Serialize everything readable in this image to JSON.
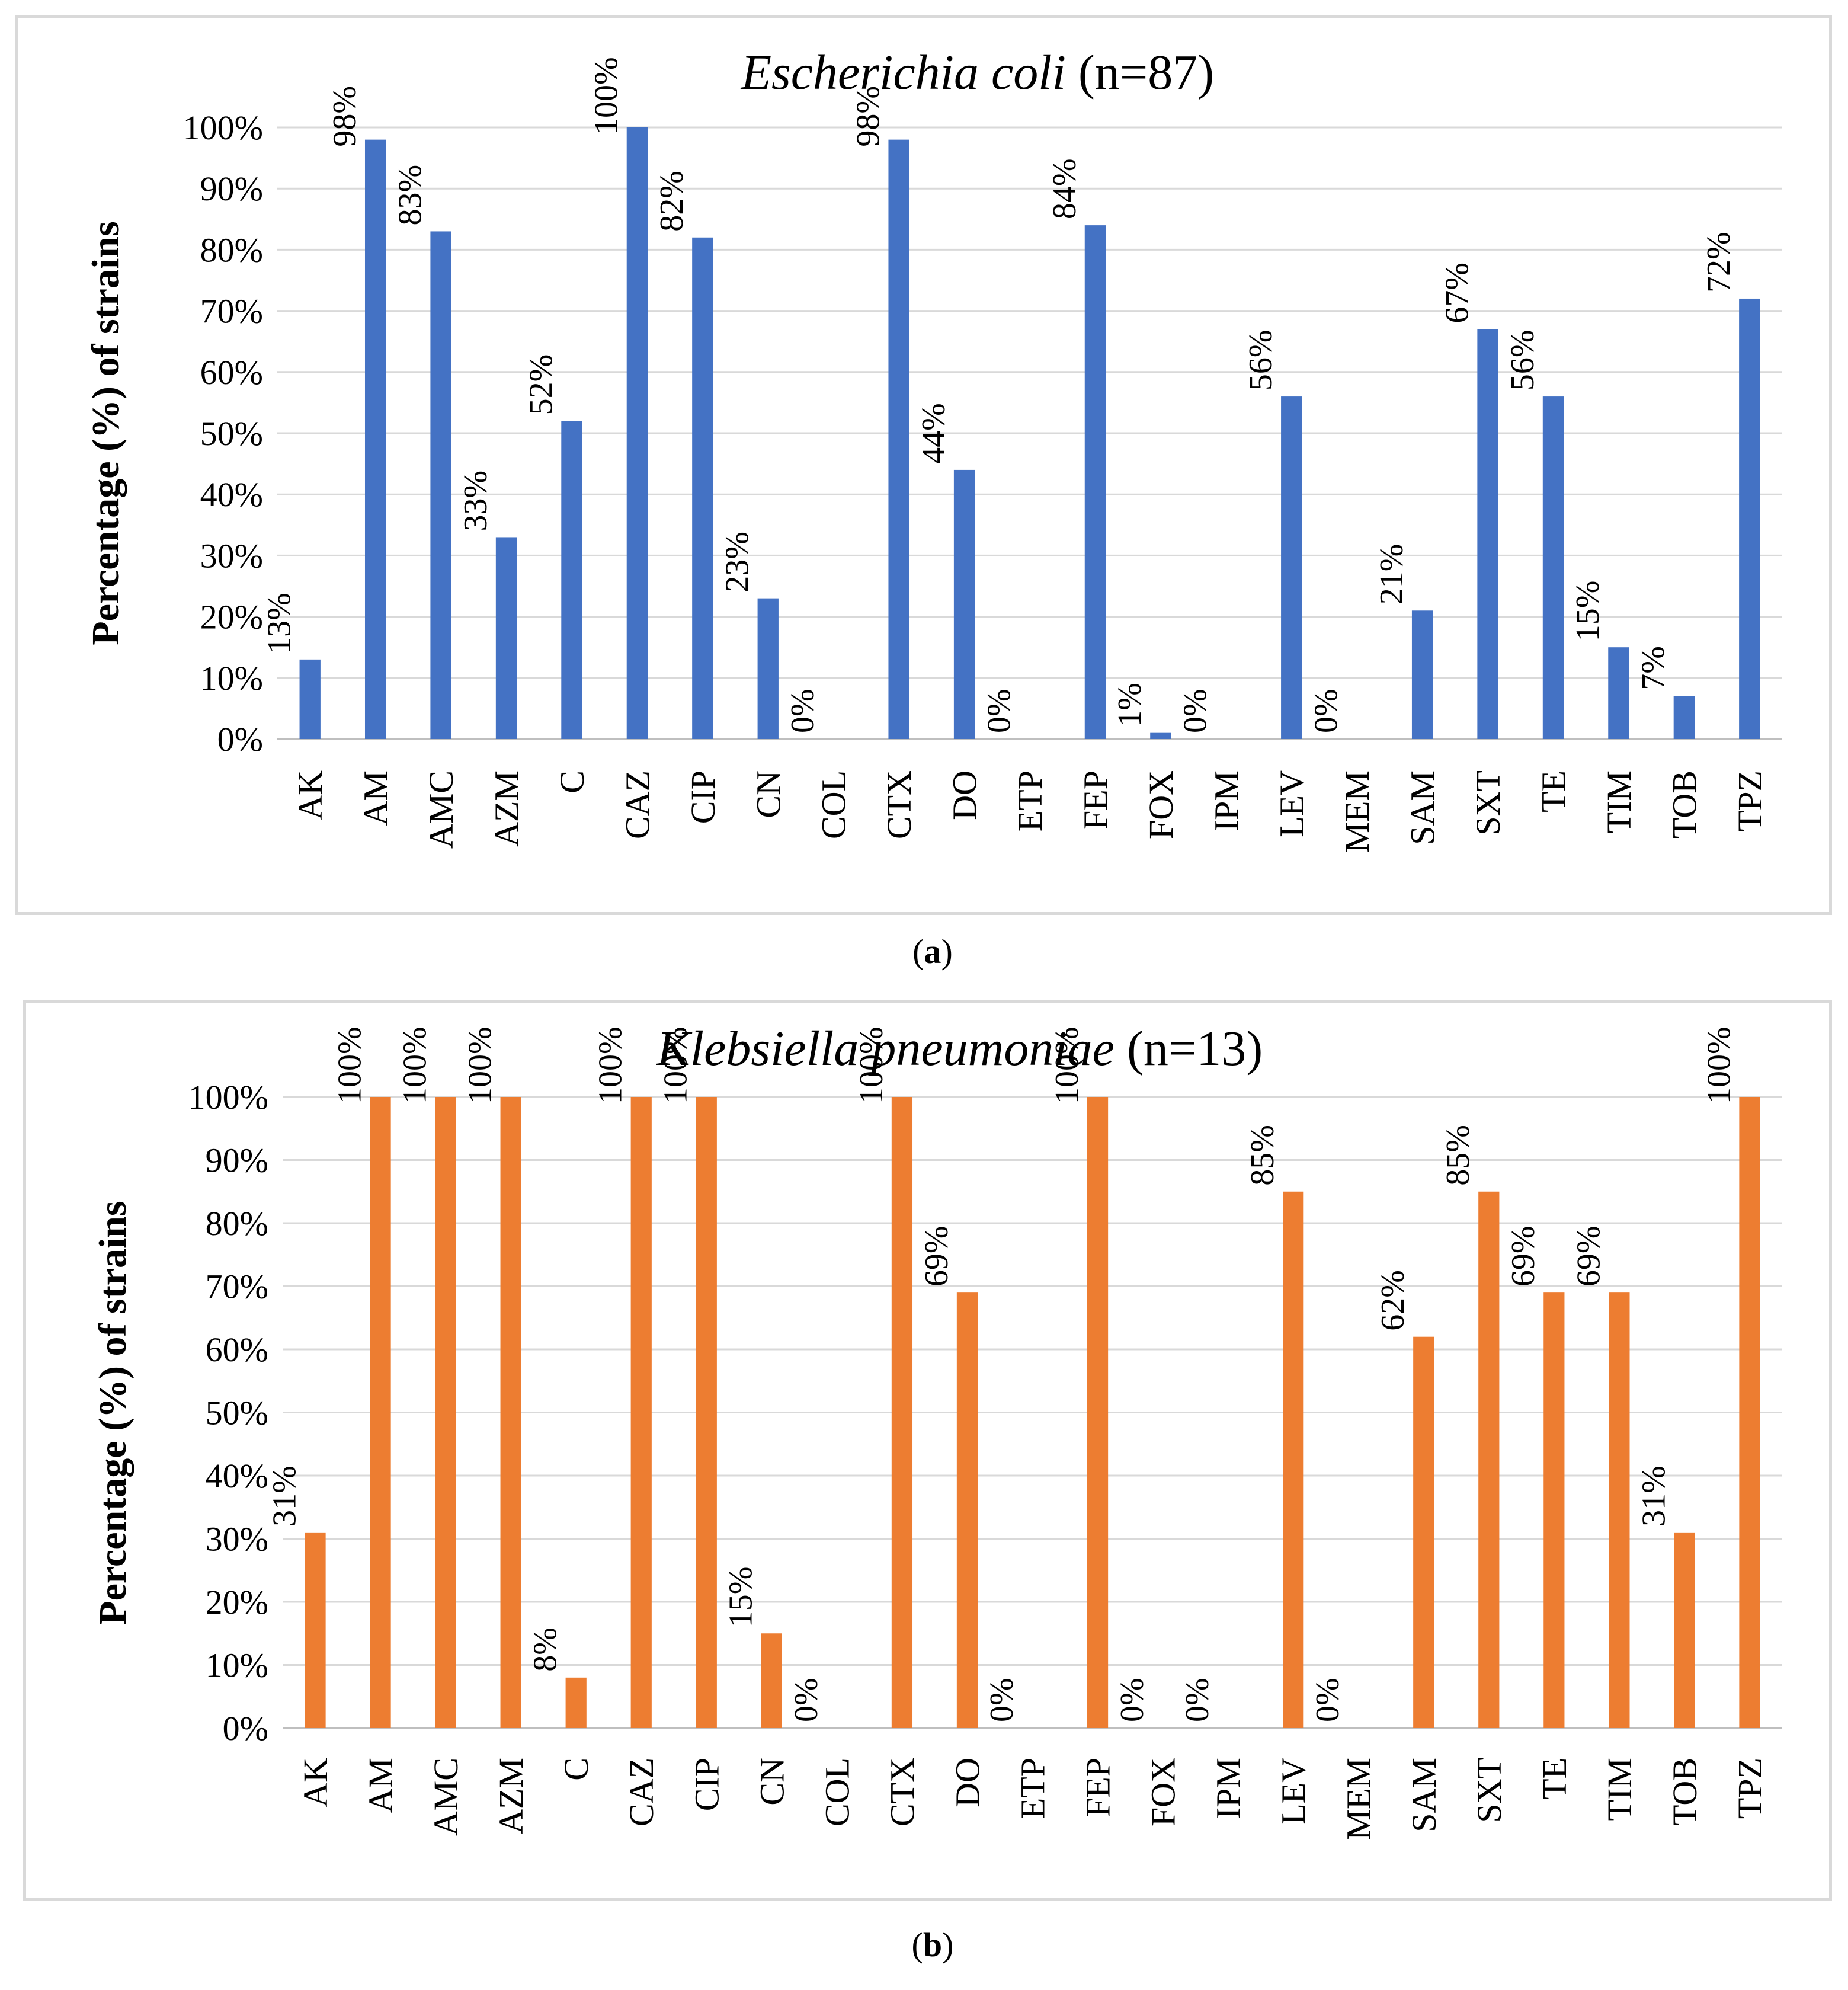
{
  "chart_data": [
    {
      "type": "bar",
      "panel": "a",
      "title_italic": "Escherichia coli",
      "title_rest": " (n=87)",
      "ylabel": "Percentage (%) of strains",
      "xlabel": "",
      "ylim": [
        0,
        100
      ],
      "yticks": [
        "0%",
        "10%",
        "20%",
        "30%",
        "40%",
        "50%",
        "60%",
        "70%",
        "80%",
        "90%",
        "100%"
      ],
      "grid": true,
      "color": "#4472C4",
      "categories": [
        "AK",
        "AM",
        "AMC",
        "AZM",
        "C",
        "CAZ",
        "CIP",
        "CN",
        "COL",
        "CTX",
        "DO",
        "ETP",
        "FEP",
        "FOX",
        "IPM",
        "LEV",
        "MEM",
        "SAM",
        "SXT",
        "TE",
        "TIM",
        "TOB",
        "TPZ"
      ],
      "values": [
        13,
        98,
        83,
        33,
        52,
        100,
        82,
        23,
        0,
        98,
        44,
        0,
        84,
        1,
        0,
        56,
        0,
        21,
        67,
        56,
        15,
        7,
        72
      ],
      "labels": [
        "13%",
        "98%",
        "83%",
        "33%",
        "52%",
        "100%",
        "82%",
        "23%",
        "0%",
        "98%",
        "44%",
        "0%",
        "84%",
        "1%",
        "0%",
        "56%",
        "0%",
        "21%",
        "67%",
        "56%",
        "15%",
        "7%",
        "72%"
      ],
      "caption": "a"
    },
    {
      "type": "bar",
      "panel": "b",
      "title_italic": "Klebsiella pneumoniae",
      "title_rest": " (n=13)",
      "ylabel": "Percentage (%) of strains",
      "xlabel": "",
      "ylim": [
        0,
        100
      ],
      "yticks": [
        "0%",
        "10%",
        "20%",
        "30%",
        "40%",
        "50%",
        "60%",
        "70%",
        "80%",
        "90%",
        "100%"
      ],
      "grid": true,
      "color": "#ED7D31",
      "categories": [
        "AK",
        "AM",
        "AMC",
        "AZM",
        "C",
        "CAZ",
        "CIP",
        "CN",
        "COL",
        "CTX",
        "DO",
        "ETP",
        "FEP",
        "FOX",
        "IPM",
        "LEV",
        "MEM",
        "SAM",
        "SXT",
        "TE",
        "TIM",
        "TOB",
        "TPZ"
      ],
      "values": [
        31,
        100,
        100,
        100,
        8,
        100,
        100,
        15,
        0,
        100,
        69,
        0,
        100,
        0,
        0,
        85,
        0,
        62,
        85,
        69,
        69,
        31,
        100
      ],
      "labels": [
        "31%",
        "100%",
        "100%",
        "100%",
        "8%",
        "100%",
        "100%",
        "15%",
        "0%",
        "100%",
        "69%",
        "0%",
        "100%",
        "0%",
        "0%",
        "85%",
        "0%",
        "62%",
        "85%",
        "69%",
        "69%",
        "31%",
        "100%"
      ],
      "caption": "b"
    }
  ]
}
